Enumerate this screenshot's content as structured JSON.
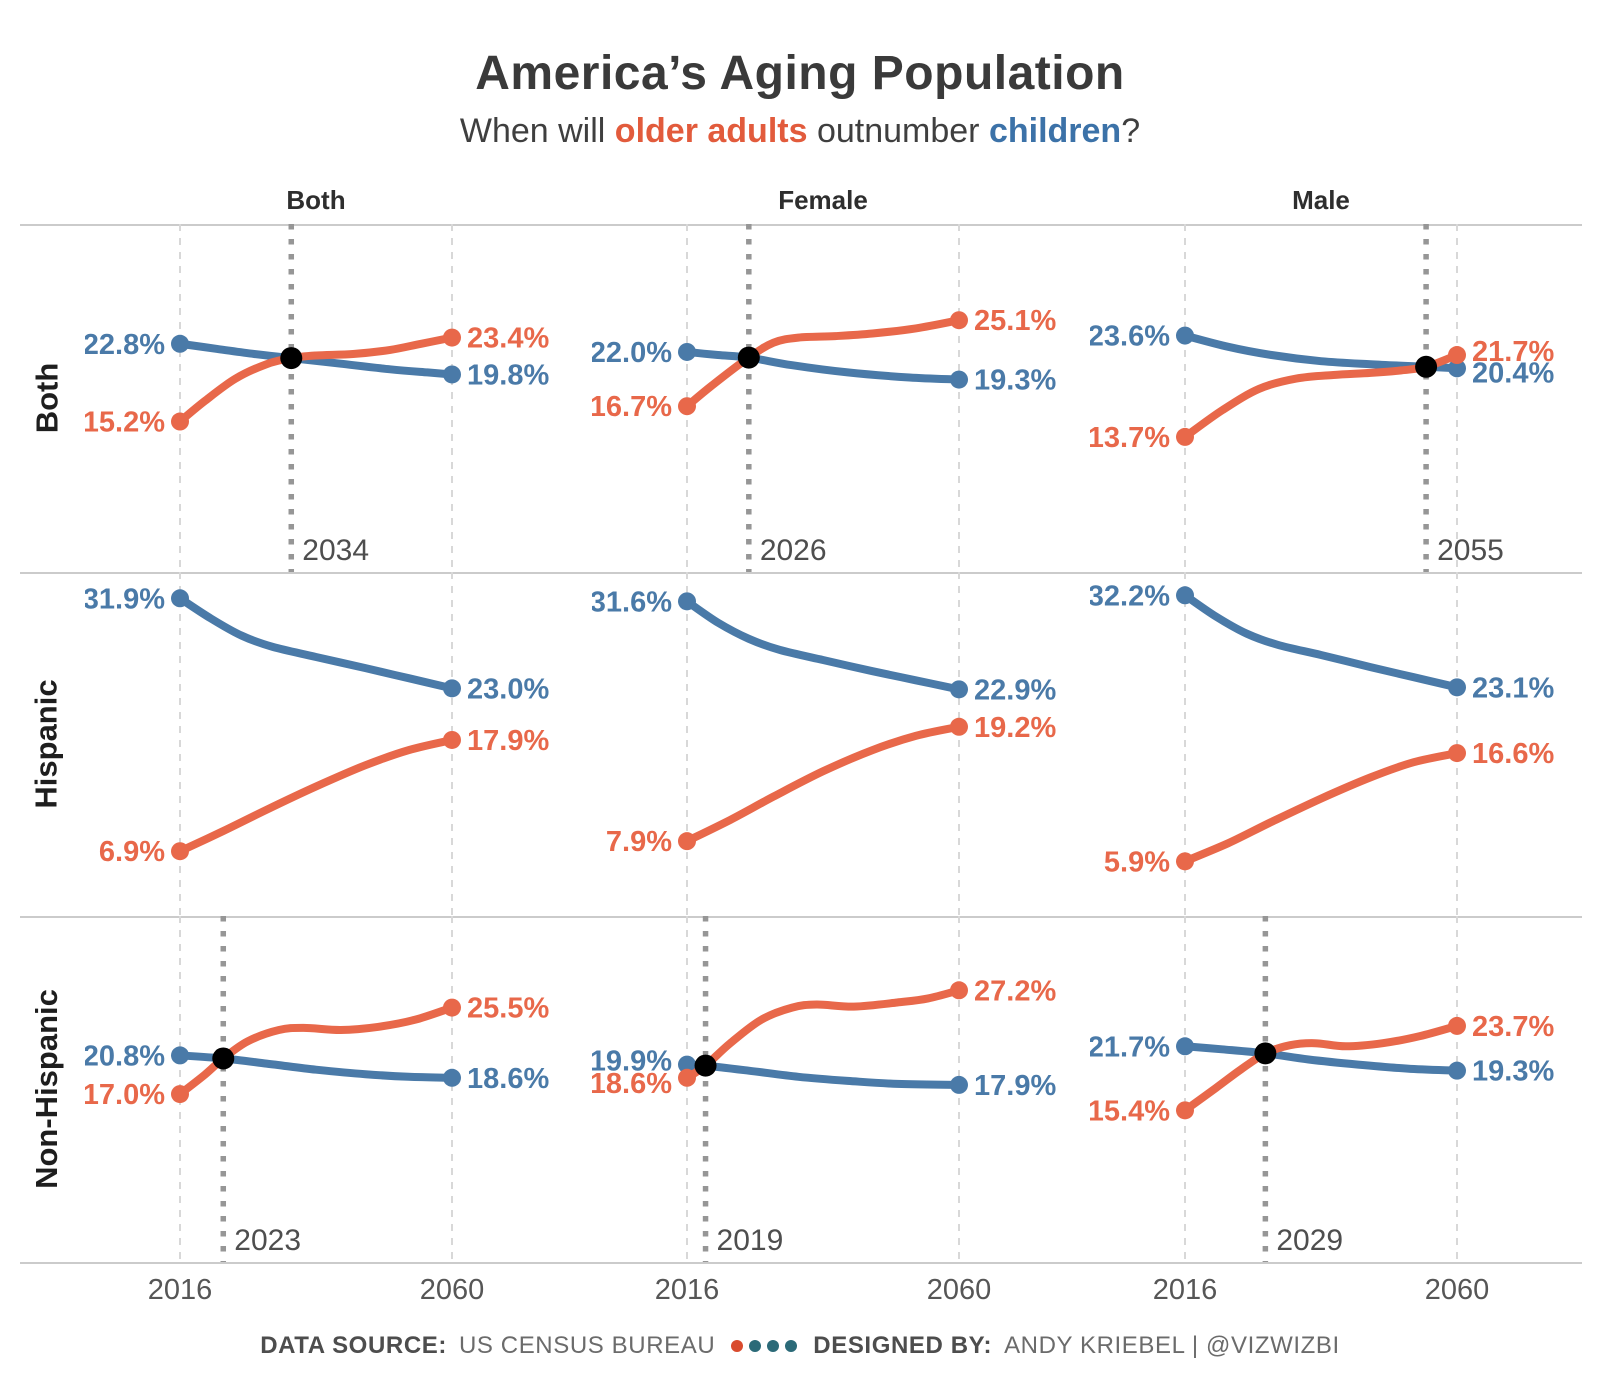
{
  "title": "America’s Aging Population",
  "subtitle": {
    "part1": "When will ",
    "older_adults": "older adults",
    "part2": " outnumber ",
    "children": "children",
    "part3": "?"
  },
  "colors": {
    "older_adults": "#e8684a",
    "children": "#4a7aa8",
    "subtitle_older": "#e25b3c",
    "subtitle_children": "#3c72a8",
    "crossover_dot": "#000000",
    "crossover_line": "#969696",
    "gridline": "#d8d8d8",
    "separator": "#cbcbcb"
  },
  "columns": [
    {
      "label": "Both"
    },
    {
      "label": "Female"
    },
    {
      "label": "Male"
    }
  ],
  "rows": [
    {
      "label": "Both"
    },
    {
      "label": "Hispanic"
    },
    {
      "label": "Non-Hispanic"
    }
  ],
  "x_axis": {
    "start": "2016",
    "end": "2060"
  },
  "footer": {
    "source_label": "DATA SOURCE:",
    "source_value": "US CENSUS BUREAU",
    "designed_label": "DESIGNED BY:",
    "designed_value": "ANDY KRIEBEL | @VIZWIZBI",
    "dot_colors": [
      "#d94b2e",
      "#2b6a78",
      "#2b6a78",
      "#2b6a78"
    ]
  },
  "chart_data": [
    {
      "row": "Both",
      "column": "Both",
      "type": "line",
      "x_range": [
        2016,
        2060
      ],
      "ylim": [
        0.5,
        34.5
      ],
      "crossover": {
        "year": 2034,
        "label": "2034",
        "value": 21.4
      },
      "series": [
        {
          "name": "children",
          "start_label": "22.8%",
          "end_label": "19.8%",
          "points": [
            [
              2016,
              22.8
            ],
            [
              2022,
              22.3
            ],
            [
              2028,
              21.8
            ],
            [
              2034,
              21.4
            ],
            [
              2042,
              20.85
            ],
            [
              2050,
              20.3
            ],
            [
              2056,
              20.0
            ],
            [
              2060,
              19.8
            ]
          ]
        },
        {
          "name": "older adults",
          "start_label": "15.2%",
          "end_label": "23.4%",
          "points": [
            [
              2016,
              15.2
            ],
            [
              2020,
              17.2
            ],
            [
              2025,
              19.4
            ],
            [
              2030,
              20.8
            ],
            [
              2034,
              21.4
            ],
            [
              2038,
              21.65
            ],
            [
              2044,
              21.8
            ],
            [
              2050,
              22.2
            ],
            [
              2055,
              22.8
            ],
            [
              2060,
              23.4
            ]
          ]
        }
      ]
    },
    {
      "row": "Both",
      "column": "Female",
      "type": "line",
      "x_range": [
        2016,
        2060
      ],
      "ylim": [
        0.5,
        34.5
      ],
      "crossover": {
        "year": 2026,
        "label": "2026",
        "value": 21.45
      },
      "series": [
        {
          "name": "children",
          "start_label": "22.0%",
          "end_label": "19.3%",
          "points": [
            [
              2016,
              22.0
            ],
            [
              2021,
              21.7
            ],
            [
              2026,
              21.45
            ],
            [
              2033,
              20.7
            ],
            [
              2042,
              20.0
            ],
            [
              2052,
              19.5
            ],
            [
              2060,
              19.3
            ]
          ]
        },
        {
          "name": "older adults",
          "start_label": "16.7%",
          "end_label": "25.1%",
          "points": [
            [
              2016,
              16.7
            ],
            [
              2020,
              18.7
            ],
            [
              2026,
              21.45
            ],
            [
              2030,
              22.9
            ],
            [
              2034,
              23.4
            ],
            [
              2040,
              23.55
            ],
            [
              2046,
              23.8
            ],
            [
              2053,
              24.3
            ],
            [
              2060,
              25.1
            ]
          ]
        }
      ]
    },
    {
      "row": "Both",
      "column": "Male",
      "type": "line",
      "x_range": [
        2016,
        2060
      ],
      "ylim": [
        0.5,
        34.5
      ],
      "crossover": {
        "year": 2055,
        "label": "2055",
        "value": 20.55
      },
      "series": [
        {
          "name": "children",
          "start_label": "23.6%",
          "end_label": "20.4%",
          "label_dy": {
            "end": 4
          },
          "points": [
            [
              2016,
              23.6
            ],
            [
              2023,
              22.5
            ],
            [
              2030,
              21.7
            ],
            [
              2038,
              21.1
            ],
            [
              2046,
              20.8
            ],
            [
              2055,
              20.55
            ],
            [
              2060,
              20.4
            ]
          ]
        },
        {
          "name": "older adults",
          "start_label": "13.7%",
          "end_label": "21.7%",
          "label_dy": {
            "end": -4
          },
          "points": [
            [
              2016,
              13.7
            ],
            [
              2022,
              16.3
            ],
            [
              2028,
              18.4
            ],
            [
              2034,
              19.4
            ],
            [
              2040,
              19.75
            ],
            [
              2046,
              19.95
            ],
            [
              2051,
              20.2
            ],
            [
              2055,
              20.55
            ],
            [
              2060,
              21.7
            ]
          ]
        }
      ]
    },
    {
      "row": "Hispanic",
      "column": "Both",
      "type": "line",
      "x_range": [
        2016,
        2060
      ],
      "ylim": [
        0.5,
        34.5
      ],
      "crossover": null,
      "series": [
        {
          "name": "children",
          "start_label": "31.9%",
          "end_label": "23.0%",
          "points": [
            [
              2016,
              31.9
            ],
            [
              2021,
              29.9
            ],
            [
              2026,
              28.2
            ],
            [
              2031,
              27.1
            ],
            [
              2038,
              26.1
            ],
            [
              2046,
              25.0
            ],
            [
              2053,
              24.0
            ],
            [
              2060,
              23.0
            ]
          ]
        },
        {
          "name": "older adults",
          "start_label": "6.9%",
          "end_label": "17.9%",
          "points": [
            [
              2016,
              6.9
            ],
            [
              2023,
              8.9
            ],
            [
              2030,
              11.0
            ],
            [
              2038,
              13.3
            ],
            [
              2046,
              15.4
            ],
            [
              2053,
              16.9
            ],
            [
              2060,
              17.9
            ]
          ]
        }
      ]
    },
    {
      "row": "Hispanic",
      "column": "Female",
      "type": "line",
      "x_range": [
        2016,
        2060
      ],
      "ylim": [
        0.5,
        34.5
      ],
      "crossover": null,
      "series": [
        {
          "name": "children",
          "start_label": "31.6%",
          "end_label": "22.9%",
          "points": [
            [
              2016,
              31.6
            ],
            [
              2021,
              29.5
            ],
            [
              2026,
              27.9
            ],
            [
              2031,
              26.8
            ],
            [
              2038,
              25.8
            ],
            [
              2046,
              24.7
            ],
            [
              2053,
              23.8
            ],
            [
              2060,
              22.9
            ]
          ]
        },
        {
          "name": "older adults",
          "start_label": "7.9%",
          "end_label": "19.2%",
          "points": [
            [
              2016,
              7.9
            ],
            [
              2023,
              10.0
            ],
            [
              2030,
              12.3
            ],
            [
              2038,
              14.8
            ],
            [
              2046,
              16.9
            ],
            [
              2053,
              18.3
            ],
            [
              2060,
              19.2
            ]
          ]
        }
      ]
    },
    {
      "row": "Hispanic",
      "column": "Male",
      "type": "line",
      "x_range": [
        2016,
        2060
      ],
      "ylim": [
        0.5,
        34.5
      ],
      "crossover": null,
      "series": [
        {
          "name": "children",
          "start_label": "32.2%",
          "end_label": "23.1%",
          "points": [
            [
              2016,
              32.2
            ],
            [
              2021,
              30.1
            ],
            [
              2026,
              28.4
            ],
            [
              2031,
              27.3
            ],
            [
              2038,
              26.3
            ],
            [
              2046,
              25.1
            ],
            [
              2053,
              24.1
            ],
            [
              2060,
              23.1
            ]
          ]
        },
        {
          "name": "older adults",
          "start_label": "5.9%",
          "end_label": "16.6%",
          "points": [
            [
              2016,
              5.9
            ],
            [
              2023,
              7.7
            ],
            [
              2030,
              9.8
            ],
            [
              2038,
              12.1
            ],
            [
              2046,
              14.2
            ],
            [
              2053,
              15.7
            ],
            [
              2060,
              16.6
            ]
          ]
        }
      ]
    },
    {
      "row": "Non-Hispanic",
      "column": "Both",
      "type": "line",
      "x_range": [
        2016,
        2060
      ],
      "ylim": [
        0.5,
        34.5
      ],
      "crossover": {
        "year": 2023,
        "label": "2023",
        "value": 20.5
      },
      "series": [
        {
          "name": "children",
          "start_label": "20.8%",
          "end_label": "18.6%",
          "points": [
            [
              2016,
              20.8
            ],
            [
              2023,
              20.5
            ],
            [
              2030,
              20.0
            ],
            [
              2038,
              19.4
            ],
            [
              2046,
              18.95
            ],
            [
              2053,
              18.7
            ],
            [
              2060,
              18.6
            ]
          ]
        },
        {
          "name": "older adults",
          "start_label": "17.0%",
          "end_label": "25.5%",
          "points": [
            [
              2016,
              17.0
            ],
            [
              2020,
              18.9
            ],
            [
              2023,
              20.5
            ],
            [
              2027,
              22.2
            ],
            [
              2032,
              23.3
            ],
            [
              2036,
              23.5
            ],
            [
              2042,
              23.3
            ],
            [
              2048,
              23.6
            ],
            [
              2054,
              24.3
            ],
            [
              2060,
              25.5
            ]
          ]
        }
      ]
    },
    {
      "row": "Non-Hispanic",
      "column": "Female",
      "type": "line",
      "x_range": [
        2016,
        2060
      ],
      "ylim": [
        0.5,
        34.5
      ],
      "crossover": {
        "year": 2019,
        "label": "2019",
        "value": 19.8
      },
      "series": [
        {
          "name": "children",
          "start_label": "19.9%",
          "end_label": "17.9%",
          "label_dy": {
            "start": -4
          },
          "points": [
            [
              2016,
              19.9
            ],
            [
              2019,
              19.8
            ],
            [
              2026,
              19.3
            ],
            [
              2034,
              18.7
            ],
            [
              2042,
              18.3
            ],
            [
              2050,
              18.0
            ],
            [
              2060,
              17.9
            ]
          ]
        },
        {
          "name": "older adults",
          "start_label": "18.6%",
          "end_label": "27.2%",
          "label_dy": {
            "start": 5
          },
          "points": [
            [
              2016,
              18.6
            ],
            [
              2019,
              19.8
            ],
            [
              2023,
              22.0
            ],
            [
              2028,
              24.3
            ],
            [
              2033,
              25.5
            ],
            [
              2037,
              25.8
            ],
            [
              2043,
              25.6
            ],
            [
              2050,
              26.0
            ],
            [
              2055,
              26.4
            ],
            [
              2060,
              27.2
            ]
          ]
        }
      ]
    },
    {
      "row": "Non-Hispanic",
      "column": "Male",
      "type": "line",
      "x_range": [
        2016,
        2060
      ],
      "ylim": [
        0.5,
        34.5
      ],
      "crossover": {
        "year": 2029,
        "label": "2029",
        "value": 21.0
      },
      "series": [
        {
          "name": "children",
          "start_label": "21.7%",
          "end_label": "19.3%",
          "points": [
            [
              2016,
              21.7
            ],
            [
              2022,
              21.4
            ],
            [
              2029,
              21.0
            ],
            [
              2036,
              20.4
            ],
            [
              2044,
              19.9
            ],
            [
              2052,
              19.5
            ],
            [
              2060,
              19.3
            ]
          ]
        },
        {
          "name": "older adults",
          "start_label": "15.4%",
          "end_label": "23.7%",
          "points": [
            [
              2016,
              15.4
            ],
            [
              2021,
              17.6
            ],
            [
              2025,
              19.4
            ],
            [
              2029,
              21.0
            ],
            [
              2033,
              21.8
            ],
            [
              2037,
              22.0
            ],
            [
              2042,
              21.7
            ],
            [
              2048,
              22.0
            ],
            [
              2054,
              22.7
            ],
            [
              2060,
              23.7
            ]
          ]
        }
      ]
    }
  ]
}
